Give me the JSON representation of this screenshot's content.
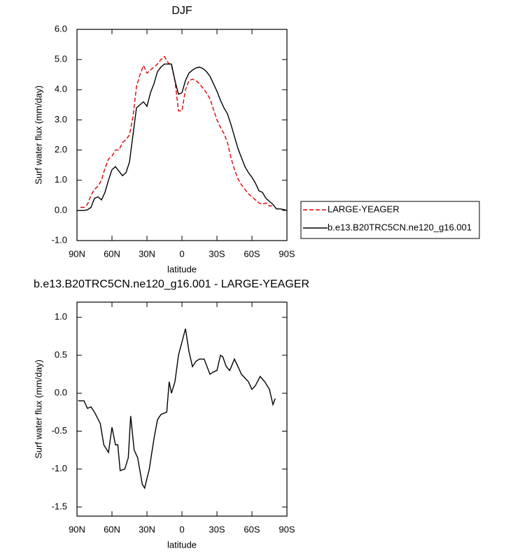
{
  "chart_data": [
    {
      "type": "line",
      "title": "DJF",
      "xlabel": "latitude",
      "ylabel": "Surf water flux (mm/day)",
      "x": [
        90,
        87,
        84,
        81,
        78,
        75,
        72,
        69,
        66,
        63,
        60,
        57,
        54,
        51,
        48,
        45,
        42,
        39,
        36,
        33,
        30,
        27,
        24,
        21,
        18,
        15,
        12,
        9,
        6,
        3,
        0,
        -3,
        -6,
        -9,
        -12,
        -15,
        -18,
        -21,
        -24,
        -27,
        -30,
        -33,
        -36,
        -39,
        -42,
        -45,
        -48,
        -51,
        -54,
        -57,
        -60,
        -63,
        -66,
        -69,
        -72,
        -75,
        -78,
        -81,
        -84,
        -87,
        -90
      ],
      "series": [
        {
          "name": "LARGE-YEAGER",
          "color": "#e00000",
          "dash": "dashed",
          "values": [
            null,
            0.1,
            0.1,
            0.2,
            0.5,
            0.7,
            0.8,
            1.0,
            1.4,
            1.7,
            1.8,
            2.0,
            2.0,
            2.25,
            2.35,
            2.5,
            3.1,
            4.1,
            4.5,
            4.8,
            4.55,
            4.65,
            4.75,
            4.85,
            5.0,
            5.1,
            4.9,
            4.8,
            4.3,
            3.3,
            3.3,
            4.0,
            4.3,
            4.35,
            4.3,
            4.2,
            4.05,
            3.9,
            3.7,
            3.35,
            3.0,
            2.75,
            2.55,
            2.25,
            1.75,
            1.35,
            1.05,
            0.85,
            0.7,
            0.55,
            0.45,
            0.35,
            0.25,
            0.2,
            0.25,
            0.15,
            0.15,
            null,
            null,
            null,
            null
          ]
        },
        {
          "name": "b.e13.B20TRC5CN.ne120_g16.001",
          "color": "#000000",
          "dash": "solid",
          "values": [
            0.0,
            0.0,
            0.0,
            0.02,
            0.1,
            0.4,
            0.45,
            0.35,
            0.6,
            1.0,
            1.35,
            1.45,
            1.3,
            1.15,
            1.25,
            1.6,
            2.5,
            3.4,
            3.5,
            3.6,
            3.45,
            3.9,
            4.2,
            4.6,
            4.75,
            4.85,
            4.85,
            4.85,
            4.3,
            3.85,
            3.9,
            4.3,
            4.55,
            4.65,
            4.72,
            4.75,
            4.7,
            4.6,
            4.45,
            4.2,
            3.95,
            3.65,
            3.4,
            3.2,
            2.85,
            2.45,
            2.05,
            1.75,
            1.45,
            1.25,
            1.1,
            0.9,
            0.65,
            0.6,
            0.4,
            0.3,
            0.2,
            0.05,
            0.05,
            0.03,
            0.0
          ]
        }
      ],
      "xlim": [
        90,
        -90
      ],
      "xticks": [
        {
          "value": 90,
          "label": "90N"
        },
        {
          "value": 60,
          "label": "60N"
        },
        {
          "value": 30,
          "label": "30N"
        },
        0,
        {
          "value": -30,
          "label": "30S"
        },
        {
          "value": -60,
          "label": "60S"
        },
        {
          "value": -90,
          "label": "90S"
        }
      ],
      "ylim": [
        -1,
        6
      ],
      "yticks": [
        {
          "value": 6,
          "label": "6.0"
        },
        {
          "value": 5,
          "label": "5.0"
        },
        {
          "value": 4,
          "label": "4.0"
        },
        {
          "value": 3,
          "label": "3.0"
        },
        {
          "value": 2,
          "label": "2.0"
        },
        {
          "value": 1,
          "label": "1.0"
        },
        {
          "value": 0,
          "label": "0.0"
        },
        {
          "value": -1,
          "label": "-1.0"
        }
      ],
      "legend": "lower-right-outside"
    },
    {
      "type": "line",
      "title": "b.e13.B20TRC5CN.ne120_g16.001 - LARGE-YEAGER",
      "xlabel": "latitude",
      "ylabel": "Surf water flux (mm/day)",
      "x": [
        89,
        84,
        81,
        78,
        75,
        70,
        67,
        63,
        60,
        57,
        55,
        53,
        49,
        46,
        44,
        41,
        38,
        34,
        32,
        28,
        24,
        21,
        18,
        13,
        11,
        9,
        6,
        3,
        -3,
        -6,
        -9,
        -12,
        -15,
        -19,
        -24,
        -27,
        -30,
        -33,
        -35,
        -38,
        -41,
        -45,
        -48,
        -51,
        -54,
        -57,
        -60,
        -63,
        -67,
        -71,
        -75,
        -78,
        -80
      ],
      "color": "#000000",
      "values": [
        -0.1,
        -0.1,
        -0.2,
        -0.18,
        -0.25,
        -0.4,
        -0.68,
        -0.78,
        -0.45,
        -0.68,
        -0.68,
        -1.02,
        -1.0,
        -0.85,
        -0.3,
        -0.75,
        -0.85,
        -1.2,
        -1.25,
        -1.0,
        -0.6,
        -0.35,
        -0.28,
        -0.25,
        0.15,
        0.0,
        0.15,
        0.5,
        0.85,
        0.55,
        0.35,
        0.42,
        0.45,
        0.45,
        0.25,
        0.28,
        0.3,
        0.5,
        0.48,
        0.35,
        0.3,
        0.45,
        0.35,
        0.25,
        0.2,
        0.15,
        0.05,
        0.1,
        0.22,
        0.15,
        0.05,
        -0.15,
        -0.07
      ],
      "xlim": [
        90,
        -90
      ],
      "xticks": [
        {
          "value": 90,
          "label": "90N"
        },
        {
          "value": 60,
          "label": "60N"
        },
        {
          "value": 30,
          "label": "30N"
        },
        0,
        {
          "value": -30,
          "label": "30S"
        },
        {
          "value": -60,
          "label": "60S"
        },
        {
          "value": -90,
          "label": "90S"
        }
      ],
      "ylim": [
        -1.62,
        1.2
      ],
      "yticks": [
        {
          "value": 1,
          "label": "1.0"
        },
        0.5,
        {
          "value": 0,
          "label": "0.0"
        },
        -0.5,
        {
          "value": -1,
          "label": "-1.0"
        },
        -1.5
      ]
    }
  ]
}
